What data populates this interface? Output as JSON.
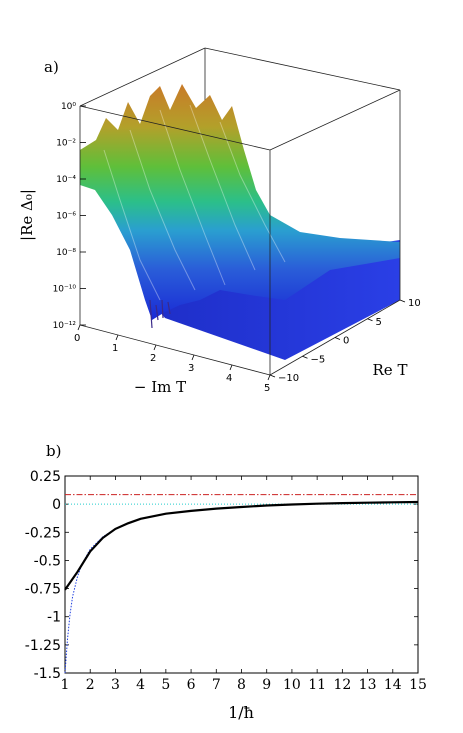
{
  "panel_a": {
    "label": "a)",
    "zlabel": "|Re Δ₀|",
    "xlabel": "− Im T",
    "ylabel": "Re T",
    "z_ticks": [
      "10⁰",
      "10⁻²",
      "10⁻⁴",
      "10⁻⁶",
      "10⁻⁸",
      "10⁻¹⁰",
      "10⁻¹²"
    ],
    "x_ticks": [
      "0",
      "1",
      "2",
      "3",
      "4",
      "5"
    ],
    "y_ticks": [
      "10",
      "5",
      "0",
      "−5",
      "−10"
    ]
  },
  "panel_b": {
    "label": "b)"
  },
  "chart_data": [
    {
      "type": "surface",
      "title": "",
      "xlabel": "− Im T",
      "ylabel": "Re T",
      "zlabel": "|Re Δ₀|",
      "xlim": [
        0,
        5
      ],
      "ylim": [
        -10,
        10
      ],
      "zlim": [
        1e-12,
        1
      ],
      "zscale": "log",
      "description_values": {
        "x": [
          0,
          0.5,
          1,
          1.5,
          2,
          2.5,
          3,
          3.5,
          4,
          4.5,
          5
        ],
        "z_peak_log10": [
          -1.5,
          -2,
          -3,
          -5,
          -7,
          -8,
          -8.5,
          -8.5,
          -8.5,
          -8.5,
          -8.5
        ]
      }
    },
    {
      "type": "line",
      "title": "",
      "xlabel": "1/ħ",
      "ylabel": "",
      "xlim": [
        1,
        15
      ],
      "ylim": [
        -1.5,
        0.25
      ],
      "x_ticks": [
        1,
        2,
        3,
        4,
        5,
        6,
        7,
        8,
        9,
        10,
        11,
        12,
        13,
        14,
        15
      ],
      "y_ticks": [
        0.25,
        0,
        -0.25,
        -0.5,
        -0.75,
        -1,
        -1.25,
        -1.5
      ],
      "y_tick_labels": [
        "0.25",
        "0",
        "-0.25",
        "-0.5",
        "-0.75",
        "-1",
        "-1.25",
        "-1.5"
      ],
      "series": [
        {
          "style": "solid-black-thick",
          "color": "#000000",
          "x": [
            1,
            1.5,
            2,
            2.5,
            3,
            3.5,
            4,
            5,
            6,
            7,
            8,
            9,
            10,
            11,
            12,
            13,
            14,
            15
          ],
          "y": [
            -0.76,
            -0.6,
            -0.42,
            -0.3,
            -0.22,
            -0.17,
            -0.13,
            -0.085,
            -0.06,
            -0.04,
            -0.025,
            -0.012,
            -0.003,
            0.004,
            0.009,
            0.013,
            0.016,
            0.019
          ]
        },
        {
          "style": "dotted-blue",
          "color": "#1f3fe0",
          "x": [
            1,
            1.1,
            1.2,
            1.3,
            1.5,
            1.7,
            2,
            2.5,
            3,
            3.5,
            4,
            5,
            6,
            7,
            8,
            9,
            10,
            11,
            12,
            13,
            14,
            15
          ],
          "y": [
            -1.5,
            -1.2,
            -0.98,
            -0.82,
            -0.64,
            -0.52,
            -0.4,
            -0.29,
            -0.22,
            -0.17,
            -0.13,
            -0.085,
            -0.06,
            -0.04,
            -0.025,
            -0.012,
            -0.003,
            0.004,
            0.009,
            0.013,
            0.016,
            0.019
          ]
        },
        {
          "style": "dashdot-red",
          "color": "#cc2222",
          "x": [
            1,
            15
          ],
          "y": [
            0.085,
            0.085
          ]
        },
        {
          "style": "dotted-cyan",
          "color": "#22cccc",
          "x": [
            1,
            15
          ],
          "y": [
            0,
            0
          ]
        }
      ],
      "grid": false,
      "legend": "none"
    }
  ]
}
